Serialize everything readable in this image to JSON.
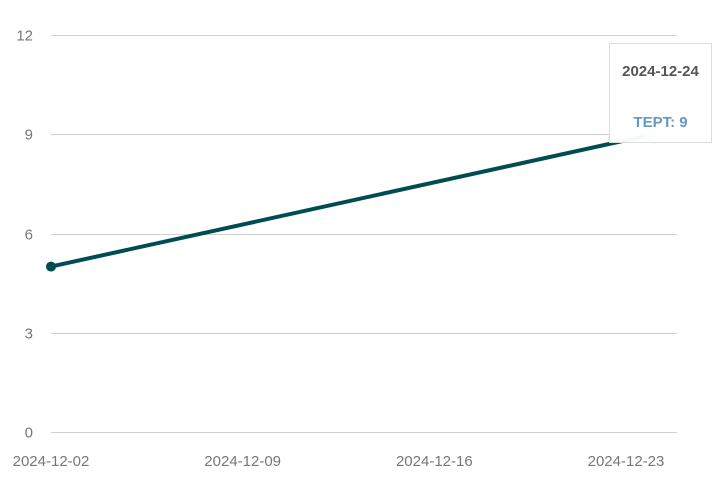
{
  "chart_data": {
    "type": "line",
    "x": [
      "2024-12-02",
      "2024-12-24"
    ],
    "x_ticks": [
      "2024-12-02",
      "2024-12-09",
      "2024-12-16",
      "2024-12-23"
    ],
    "series": [
      {
        "name": "TEPT",
        "values": [
          5,
          9
        ]
      }
    ],
    "y_ticks": [
      "0",
      "3",
      "6",
      "9",
      "12"
    ],
    "ylim": [
      0,
      12
    ],
    "title": "",
    "xlabel": "",
    "ylabel": "",
    "grid": "horizontal",
    "legend": "none",
    "colors": {
      "line": "#004c55",
      "hover_marker": "#c9d9d9",
      "grid": "#d0d0d0",
      "tick_text": "#777777",
      "tooltip_value": "#6699bb"
    }
  },
  "tooltip": {
    "date": "2024-12-24",
    "value_label": "TEPT: 9"
  }
}
